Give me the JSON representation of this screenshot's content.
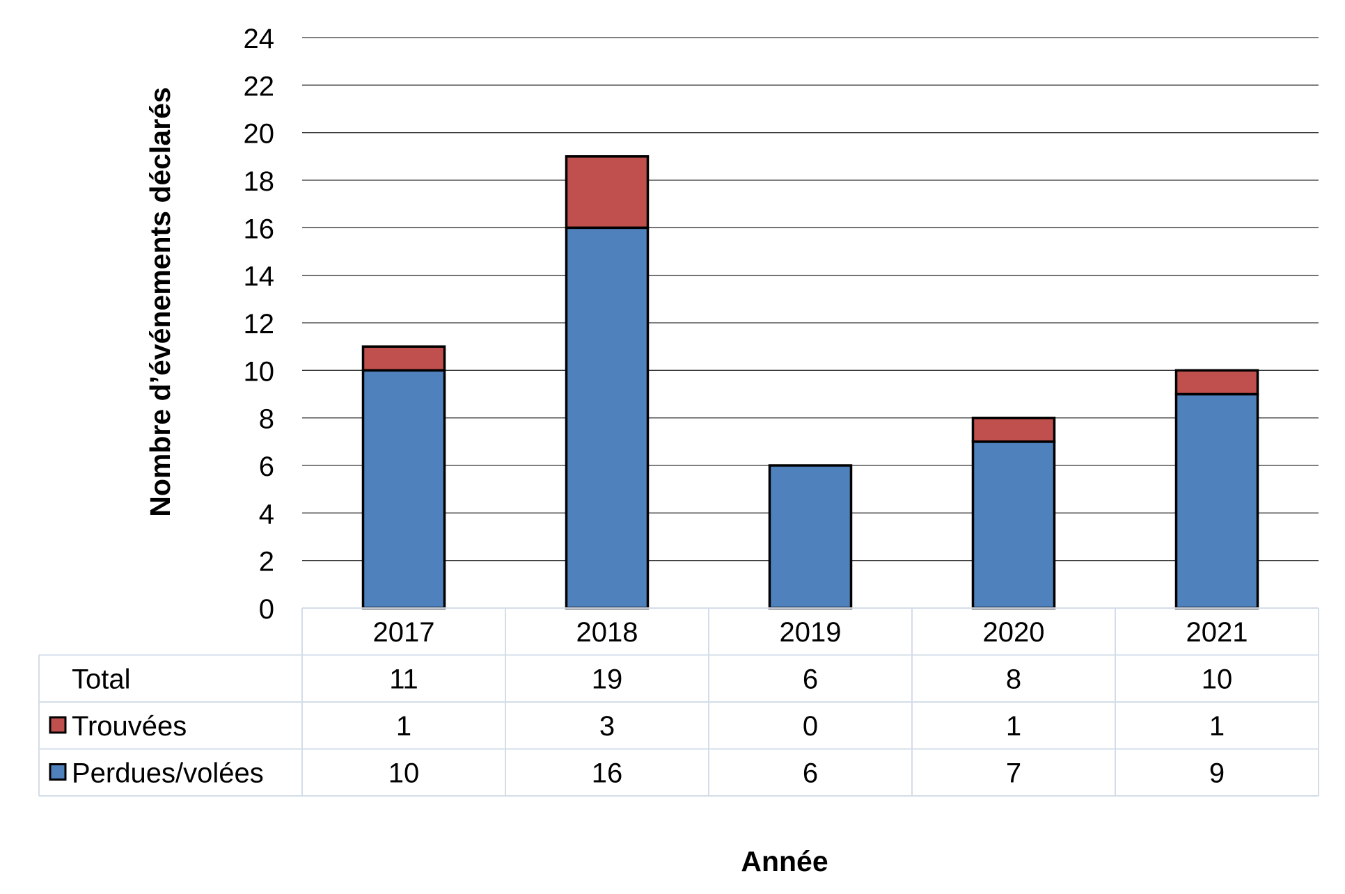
{
  "chart_data": {
    "type": "bar",
    "stacked": true,
    "title": "",
    "xlabel": "Année",
    "ylabel": "Nombre d’événements déclarés",
    "ylim": [
      0,
      24
    ],
    "ytick_step": 2,
    "grid": true,
    "legend": "data-table",
    "categories": [
      "2017",
      "2018",
      "2019",
      "2020",
      "2021"
    ],
    "series": [
      {
        "name": "Perdues/volées",
        "values": [
          10,
          16,
          6,
          7,
          9
        ],
        "color": "#4f81bd"
      },
      {
        "name": "Trouvées",
        "values": [
          1,
          3,
          0,
          1,
          1
        ],
        "color": "#c0504d"
      }
    ],
    "table": {
      "total_label": "Total",
      "totals": [
        11,
        19,
        6,
        8,
        10
      ]
    }
  }
}
